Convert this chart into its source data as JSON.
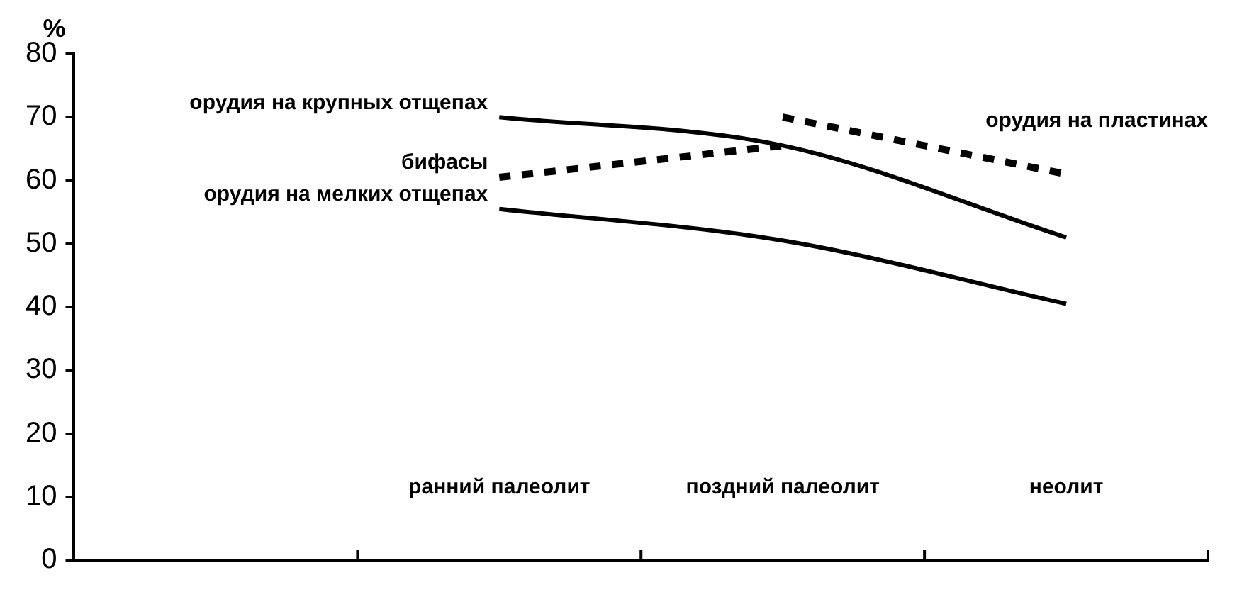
{
  "chart_data": {
    "type": "line",
    "ylabel": "%",
    "ylim": [
      0,
      80
    ],
    "categories": [
      null,
      "ранний палеолит",
      "поздний палеолит",
      "неолит"
    ],
    "yticks": [
      0,
      10,
      20,
      30,
      40,
      50,
      60,
      70,
      80
    ],
    "grid": false,
    "legend": false,
    "marker": "none",
    "series": [
      {
        "name": "орудия на крупных отщепах",
        "color": "#000000",
        "line_style": "solid",
        "values": [
          null,
          70,
          65.5,
          51
        ]
      },
      {
        "name": "бифасы",
        "color": "#000000",
        "line_style": "dashed",
        "values": [
          null,
          60.5,
          65.5,
          null
        ]
      },
      {
        "name": "орудия на мелких отщепах",
        "color": "#000000",
        "line_style": "solid",
        "values": [
          null,
          55.5,
          50.5,
          40.5
        ]
      },
      {
        "name": "орудия на пластинах",
        "color": "#000000",
        "line_style": "dashed",
        "values": [
          null,
          null,
          70,
          61
        ]
      }
    ]
  }
}
